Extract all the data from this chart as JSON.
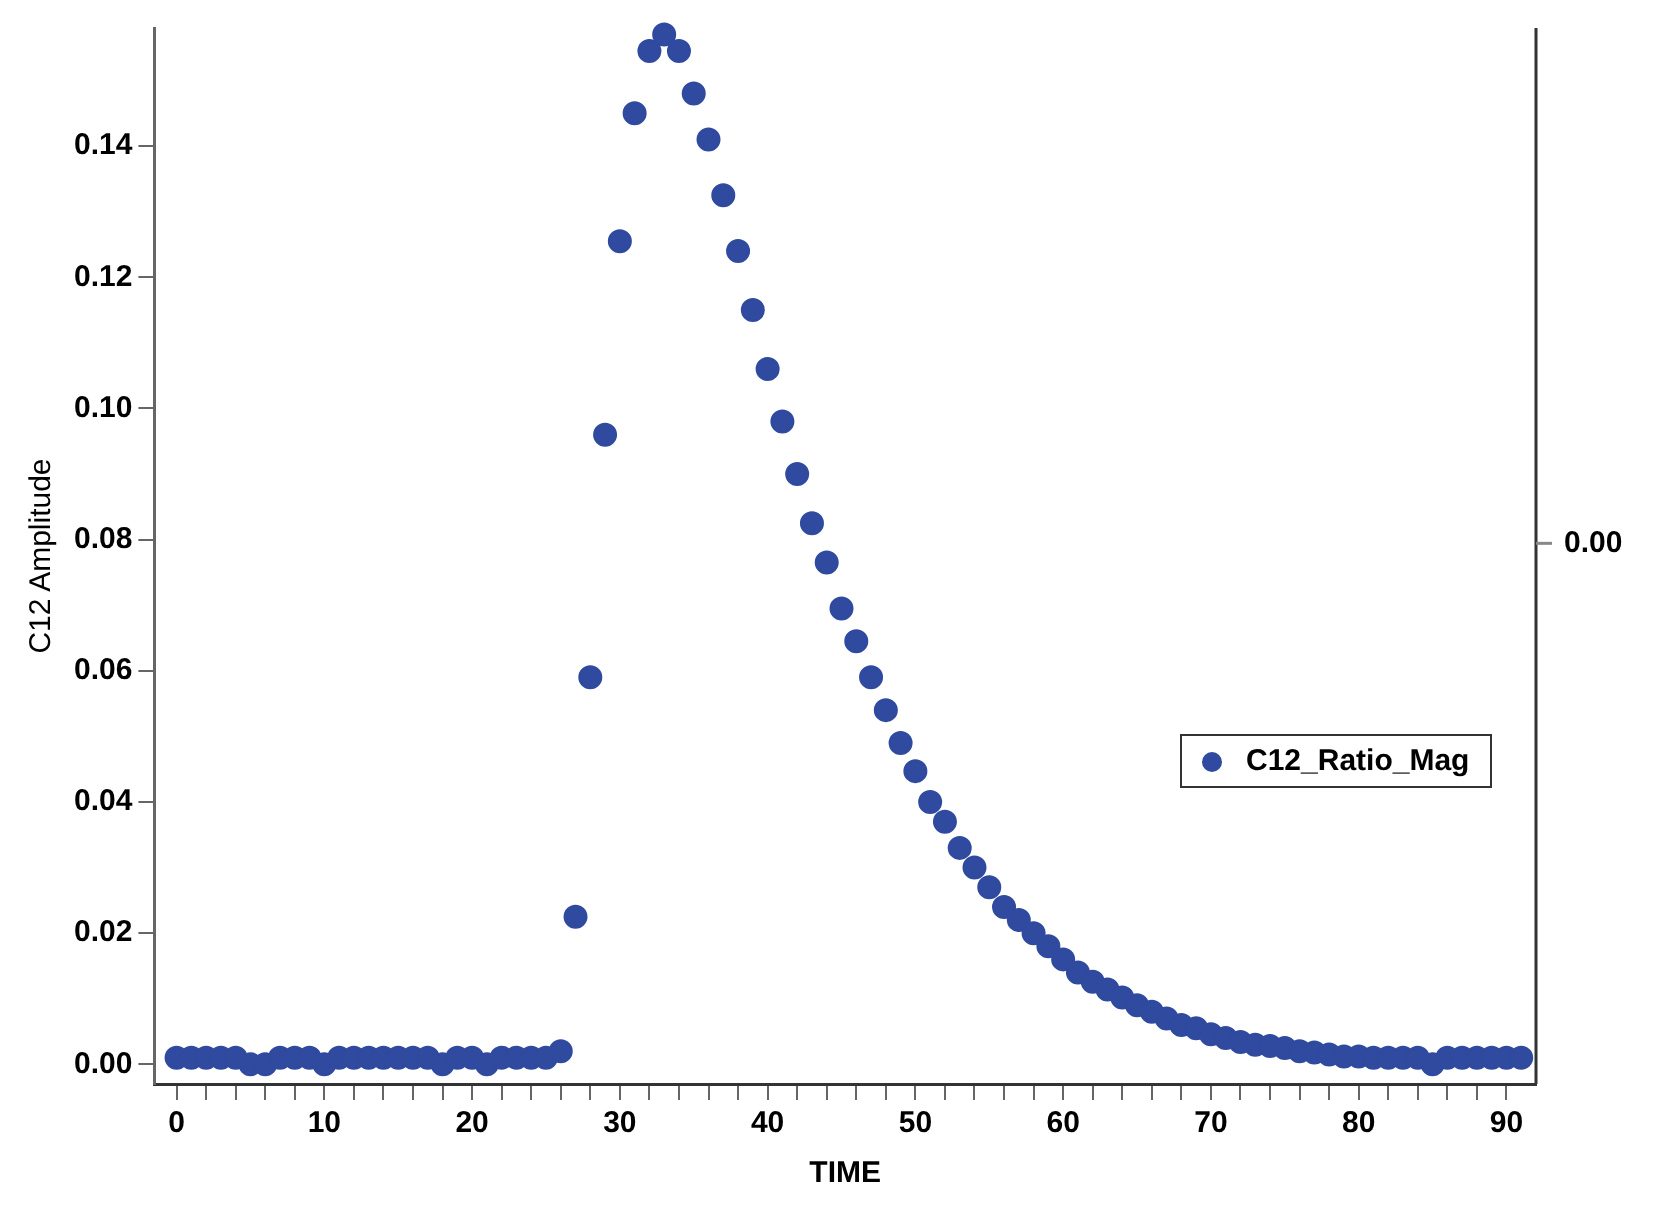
{
  "chart_data": {
    "type": "scatter",
    "xlabel": "TIME",
    "ylabel": "C12 Amplitude",
    "marker": "circle",
    "legend": "right",
    "grid": false,
    "xlim": [
      -1.5,
      92
    ],
    "ylim": [
      -0.003,
      0.158
    ],
    "annotations": [
      "0.00"
    ],
    "xticks": [
      0,
      {
        "value": 2,
        "label": null
      },
      {
        "value": 4,
        "label": null
      },
      {
        "value": 6,
        "label": null
      },
      {
        "value": 8,
        "label": null
      },
      10,
      {
        "value": 12,
        "label": null
      },
      {
        "value": 14,
        "label": null
      },
      {
        "value": 16,
        "label": null
      },
      {
        "value": 18,
        "label": null
      },
      20,
      {
        "value": 22,
        "label": null
      },
      {
        "value": 24,
        "label": null
      },
      {
        "value": 26,
        "label": null
      },
      {
        "value": 28,
        "label": null
      },
      30,
      {
        "value": 32,
        "label": null
      },
      {
        "value": 34,
        "label": null
      },
      {
        "value": 36,
        "label": null
      },
      {
        "value": 38,
        "label": null
      },
      40,
      {
        "value": 42,
        "label": null
      },
      {
        "value": 44,
        "label": null
      },
      {
        "value": 46,
        "label": null
      },
      {
        "value": 48,
        "label": null
      },
      50,
      {
        "value": 52,
        "label": null
      },
      {
        "value": 54,
        "label": null
      },
      {
        "value": 56,
        "label": null
      },
      {
        "value": 58,
        "label": null
      },
      60,
      {
        "value": 62,
        "label": null
      },
      {
        "value": 64,
        "label": null
      },
      {
        "value": 66,
        "label": null
      },
      {
        "value": 68,
        "label": null
      },
      70,
      {
        "value": 72,
        "label": null
      },
      {
        "value": 74,
        "label": null
      },
      {
        "value": 76,
        "label": null
      },
      {
        "value": 78,
        "label": null
      },
      80,
      {
        "value": 82,
        "label": null
      },
      {
        "value": 84,
        "label": null
      },
      {
        "value": 86,
        "label": null
      },
      {
        "value": 88,
        "label": null
      },
      90
    ],
    "yticks": [
      {
        "value": 0,
        "label": "0.00"
      },
      {
        "value": 0.02,
        "label": "0.02"
      },
      {
        "value": 0.04,
        "label": "0.04"
      },
      {
        "value": 0.06,
        "label": "0.06"
      },
      {
        "value": 0.08,
        "label": "0.08"
      },
      {
        "value": 0.1,
        "label": "0.10"
      },
      {
        "value": 0.12,
        "label": "0.12"
      },
      {
        "value": 0.14,
        "label": "0.14"
      }
    ],
    "series": [
      {
        "name": "C12_Ratio_Mag",
        "color": "#2f4a9f",
        "x": [
          0,
          1,
          2,
          3,
          4,
          5,
          6,
          7,
          8,
          9,
          10,
          11,
          12,
          13,
          14,
          15,
          16,
          17,
          18,
          19,
          20,
          21,
          22,
          23,
          24,
          25,
          26,
          27,
          28,
          29,
          30,
          31,
          32,
          33,
          34,
          35,
          36,
          37,
          38,
          39,
          40,
          41,
          42,
          43,
          44,
          45,
          46,
          47,
          48,
          49,
          50,
          51,
          52,
          53,
          54,
          55,
          56,
          57,
          58,
          59,
          60,
          61,
          62,
          63,
          64,
          65,
          66,
          67,
          68,
          69,
          70,
          71,
          72,
          73,
          74,
          75,
          76,
          77,
          78,
          79,
          80,
          81,
          82,
          83,
          84,
          85,
          86,
          87,
          88,
          89,
          90,
          91
        ],
        "values": [
          0.001,
          0.001,
          0.001,
          0.001,
          0.001,
          0.0,
          0.0,
          0.001,
          0.001,
          0.001,
          0.0,
          0.001,
          0.001,
          0.001,
          0.001,
          0.001,
          0.001,
          0.001,
          0.0,
          0.001,
          0.001,
          0.0,
          0.001,
          0.001,
          0.001,
          0.001,
          0.002,
          0.0225,
          0.059,
          0.096,
          0.1255,
          0.145,
          0.1545,
          0.157,
          0.1545,
          0.148,
          0.141,
          0.1325,
          0.124,
          0.115,
          0.106,
          0.098,
          0.09,
          0.0825,
          0.0765,
          0.0695,
          0.0645,
          0.059,
          0.054,
          0.049,
          0.0447,
          0.04,
          0.037,
          0.033,
          0.03,
          0.027,
          0.024,
          0.022,
          0.02,
          0.018,
          0.016,
          0.014,
          0.0126,
          0.0114,
          0.0102,
          0.009,
          0.008,
          0.007,
          0.006,
          0.0055,
          0.0046,
          0.004,
          0.0034,
          0.003,
          0.0028,
          0.0025,
          0.002,
          0.0018,
          0.0015,
          0.0012,
          0.0012,
          0.001,
          0.001,
          0.001,
          0.001,
          0.0,
          0.001,
          0.001,
          0.001,
          0.001,
          0.001,
          0.001
        ]
      }
    ]
  }
}
